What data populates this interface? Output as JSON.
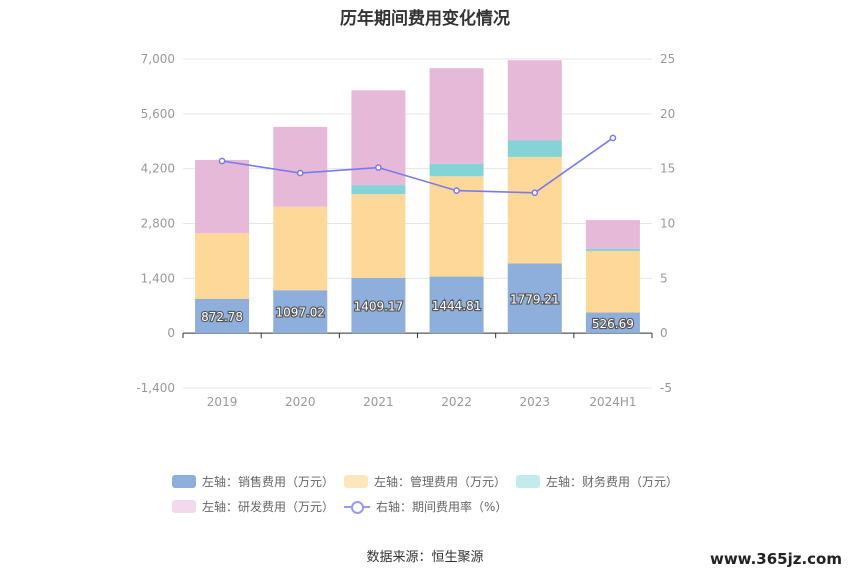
{
  "title": "历年期间费用变化情况",
  "source": "数据来源：恒生聚源",
  "watermark": "www.365jz.com",
  "colors": {
    "sales": "#8eaedb",
    "admin": "#fed899",
    "finance": "#84d3d6",
    "rnd": "#e6b9d9",
    "rate": "#7a7aee"
  },
  "legend": [
    {
      "label": "左轴：销售费用（万元）",
      "color": "#8eaedb",
      "type": "bar"
    },
    {
      "label": "左轴：管理费用（万元）",
      "color": "#fde5bd",
      "type": "bar"
    },
    {
      "label": "左轴：财务费用（万元）",
      "color": "#c4ebeb",
      "type": "bar"
    },
    {
      "label": "左轴：研发费用（万元）",
      "color": "#f3d9ec",
      "type": "bar"
    },
    {
      "label": "右轴：期间费用率（%）",
      "color": "#9a9af5",
      "type": "line"
    }
  ],
  "chart_data": {
    "type": "bar",
    "stacked": true,
    "categories": [
      "2019",
      "2020",
      "2021",
      "2022",
      "2023",
      "2024H1"
    ],
    "left_axis": {
      "min": -1400,
      "max": 7000,
      "ticks": [
        "-1,400",
        "0",
        "1,400",
        "2,800",
        "4,200",
        "5,600",
        "7,000"
      ]
    },
    "right_axis": {
      "min": -5,
      "max": 25,
      "ticks": [
        "-5",
        "0",
        "5",
        "10",
        "15",
        "20",
        "25"
      ]
    },
    "series": [
      {
        "name": "左轴：销售费用（万元）",
        "axis": "left",
        "values": [
          872.78,
          1097.02,
          1409.17,
          1444.81,
          1779.21,
          526.69
        ],
        "labels": [
          "872.78",
          "1097.02",
          "1409.17",
          "1444.81",
          "1779.21",
          "526.69"
        ]
      },
      {
        "name": "左轴：管理费用（万元）",
        "axis": "left",
        "values": [
          1680,
          2130,
          2140,
          2560,
          2720,
          1570
        ]
      },
      {
        "name": "左轴：财务费用（万元）",
        "axis": "left",
        "values": [
          0,
          0,
          230,
          320,
          420,
          60
        ]
      },
      {
        "name": "左轴：研发费用（万元）",
        "axis": "left",
        "values": [
          1870,
          2040,
          2420,
          2440,
          2050,
          730
        ]
      },
      {
        "name": "右轴：期间费用率（%）",
        "axis": "right",
        "type": "line",
        "values": [
          15.7,
          14.6,
          15.1,
          13.0,
          12.8,
          17.8
        ]
      }
    ],
    "grid": true,
    "legend_position": "bottom"
  }
}
